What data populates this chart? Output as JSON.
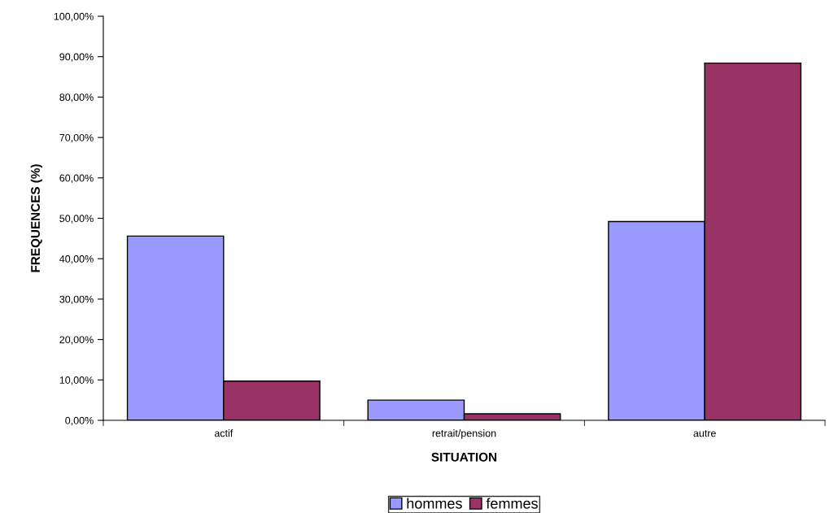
{
  "chart_data": {
    "type": "bar",
    "xlabel": "SITUATION",
    "ylabel": "FREQUENCES (%)",
    "categories": [
      "actif",
      "retrait/pension",
      "autre"
    ],
    "series": [
      {
        "name": "hommes",
        "color": "#9999ff",
        "values": [
          45.6,
          5.0,
          49.2
        ]
      },
      {
        "name": "femmes",
        "color": "#993366",
        "values": [
          9.7,
          1.6,
          88.4
        ]
      }
    ],
    "ylim": [
      0,
      100
    ],
    "yticks": [
      {
        "value": 0,
        "label": "0,00%"
      },
      {
        "value": 10,
        "label": "10,00%"
      },
      {
        "value": 20,
        "label": "20,00%"
      },
      {
        "value": 30,
        "label": "30,00%"
      },
      {
        "value": 40,
        "label": "40,00%"
      },
      {
        "value": 50,
        "label": "50,00%"
      },
      {
        "value": 60,
        "label": "60,00%"
      },
      {
        "value": 70,
        "label": "70,00%"
      },
      {
        "value": 80,
        "label": "80,00%"
      },
      {
        "value": 90,
        "label": "90,00%"
      },
      {
        "value": 100,
        "label": "100,00%"
      }
    ],
    "grid": false,
    "legend": "bottom"
  }
}
